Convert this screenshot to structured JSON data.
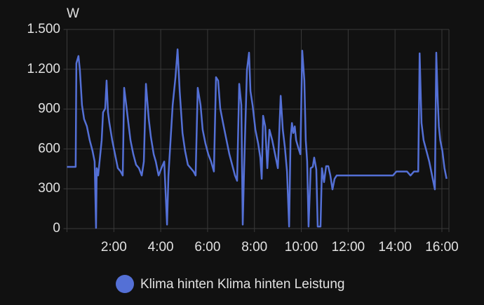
{
  "chart_data": {
    "type": "line",
    "y_label": "W",
    "x": [
      0,
      0.37,
      0.4,
      0.49,
      0.55,
      0.64,
      0.73,
      0.85,
      0.97,
      1.09,
      1.18,
      1.24,
      1.27,
      1.33,
      1.39,
      1.48,
      1.54,
      1.63,
      1.69,
      1.75,
      1.81,
      1.93,
      2.05,
      2.17,
      2.29,
      2.38,
      2.44,
      2.53,
      2.62,
      2.71,
      2.83,
      2.95,
      3.07,
      3.19,
      3.28,
      3.37,
      3.49,
      3.58,
      3.7,
      3.79,
      3.91,
      4.03,
      4.15,
      4.27,
      4.33,
      4.42,
      4.51,
      4.63,
      4.72,
      4.81,
      4.93,
      5.04,
      5.16,
      5.28,
      5.4,
      5.49,
      5.58,
      5.7,
      5.79,
      5.91,
      6.03,
      6.15,
      6.27,
      6.36,
      6.45,
      6.54,
      6.66,
      6.78,
      6.93,
      7.05,
      7.17,
      7.26,
      7.35,
      7.44,
      7.5,
      7.56,
      7.68,
      7.77,
      7.83,
      7.92,
      8.04,
      8.16,
      8.25,
      8.31,
      8.37,
      8.46,
      8.55,
      8.64,
      8.76,
      8.88,
      9.0,
      9.12,
      9.21,
      9.3,
      9.39,
      9.48,
      9.54,
      9.6,
      9.66,
      9.72,
      9.78,
      9.87,
      9.96,
      10.04,
      10.13,
      10.19,
      10.25,
      10.31,
      10.4,
      10.49,
      10.55,
      10.64,
      10.7,
      10.82,
      10.88,
      10.97,
      11.06,
      11.15,
      11.24,
      11.33,
      11.42,
      11.51,
      12.71,
      13.91,
      14.06,
      14.51,
      14.66,
      14.81,
      14.99,
      15.05,
      15.13,
      15.22,
      15.34,
      15.46,
      15.58,
      15.7,
      15.76,
      15.82,
      15.87,
      15.93,
      16.02,
      16.11,
      16.2
    ],
    "series": [
      {
        "name": "Klima hinten Klima hinten Leistung",
        "color": "#5470d6",
        "values": [
          465,
          465,
          1245,
          1300,
          1195,
          930,
          825,
          770,
          665,
          585,
          505,
          5,
          455,
          400,
          505,
          665,
          875,
          905,
          1115,
          875,
          795,
          665,
          560,
          455,
          430,
          400,
          1060,
          930,
          795,
          665,
          560,
          480,
          455,
          400,
          505,
          1090,
          825,
          690,
          560,
          505,
          400,
          455,
          505,
          30,
          400,
          665,
          930,
          1140,
          1350,
          1035,
          720,
          585,
          480,
          455,
          430,
          400,
          1060,
          930,
          745,
          640,
          560,
          505,
          430,
          1140,
          1115,
          905,
          795,
          690,
          560,
          480,
          400,
          360,
          1090,
          930,
          30,
          455,
          1195,
          1325,
          1035,
          930,
          745,
          640,
          535,
          375,
          850,
          770,
          455,
          745,
          665,
          560,
          455,
          1000,
          745,
          610,
          430,
          15,
          665,
          795,
          720,
          770,
          665,
          610,
          560,
          1340,
          1115,
          665,
          505,
          15,
          455,
          465,
          535,
          445,
          15,
          15,
          455,
          350,
          470,
          470,
          400,
          295,
          375,
          400,
          400,
          400,
          430,
          430,
          400,
          430,
          430,
          1320,
          795,
          665,
          585,
          505,
          400,
          295,
          1325,
          980,
          770,
          665,
          585,
          455,
          375
        ]
      }
    ],
    "xlim": [
      0,
      16.3
    ],
    "xticks": [
      {
        "value": 2,
        "label": "2:00"
      },
      {
        "value": 4,
        "label": "4:00"
      },
      {
        "value": 6,
        "label": "6:00"
      },
      {
        "value": 8,
        "label": "8:00"
      },
      {
        "value": 10,
        "label": "10:00"
      },
      {
        "value": 12,
        "label": "12:00"
      },
      {
        "value": 14,
        "label": "14:00"
      },
      {
        "value": 16,
        "label": "16:00"
      }
    ],
    "ylim": [
      0,
      1500
    ],
    "yticks": [
      0,
      300,
      600,
      900,
      {
        "value": 1200,
        "label": "1.200"
      },
      {
        "value": 1500,
        "label": "1.500"
      }
    ],
    "grid": true
  }
}
